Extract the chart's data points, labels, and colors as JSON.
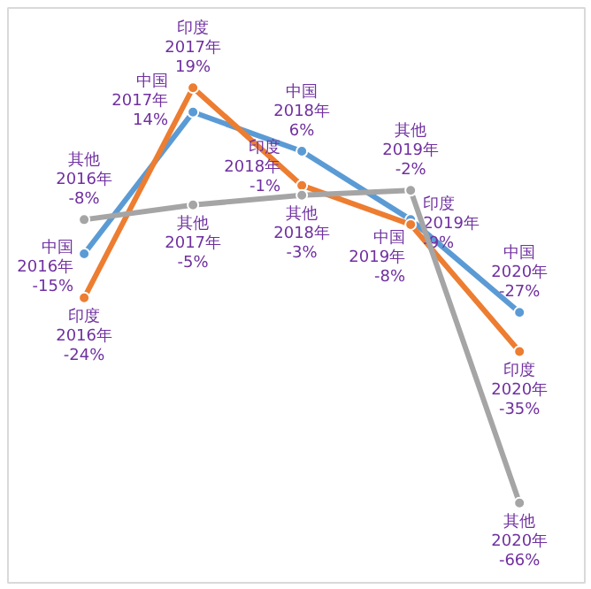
{
  "chart_data": {
    "type": "line",
    "categories": [
      null,
      null,
      null,
      null,
      null
    ],
    "tick_labels": false,
    "grid": false,
    "marker": "circle",
    "data_labels": true,
    "series": [
      {
        "name": "中国",
        "color": "#5b9bd5",
        "values": [
          -15,
          14,
          6,
          -8,
          -27
        ],
        "value_labels": [
          "2016年\n-15%",
          "2017年\n14%",
          "2018年\n6%",
          "2019年\n-8%",
          "2020年\n-27%"
        ]
      },
      {
        "name": "印度",
        "color": "#ed7d31",
        "values": [
          -24,
          19,
          -1,
          -9,
          -35
        ],
        "value_labels": [
          "2016年\n-24%",
          "2017年\n19%",
          "2018年\n-1%",
          "2019年\n-9%",
          "2020年\n-35%"
        ]
      },
      {
        "name": "其他",
        "color": "#a5a5a5",
        "values": [
          -8,
          -5,
          -3,
          -2,
          -66
        ],
        "value_labels": [
          "2016年\n-8%",
          "2017年\n-5%",
          "2018年\n-3%",
          "2019年\n-2%",
          "2020年\n-66%"
        ]
      }
    ]
  }
}
